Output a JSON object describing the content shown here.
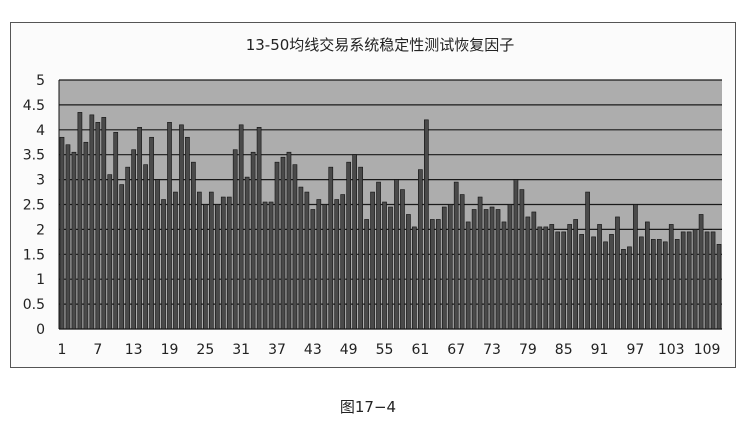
{
  "chart_data": {
    "type": "bar",
    "title": "13-50均线交易系统稳定性测试恢复因子",
    "xlabel": "",
    "ylabel": "",
    "ylim": [
      0,
      5
    ],
    "y_ticks": [
      "0",
      "0.5",
      "1",
      "1.5",
      "2",
      "2.5",
      "3",
      "3.5",
      "4",
      "4.5",
      "5"
    ],
    "x_tick_labels": [
      "1",
      "7",
      "13",
      "19",
      "25",
      "31",
      "37",
      "43",
      "49",
      "55",
      "61",
      "67",
      "73",
      "79",
      "85",
      "91",
      "97",
      "103",
      "109"
    ],
    "categories": [
      1,
      2,
      3,
      4,
      5,
      6,
      7,
      8,
      9,
      10,
      11,
      12,
      13,
      14,
      15,
      16,
      17,
      18,
      19,
      20,
      21,
      22,
      23,
      24,
      25,
      26,
      27,
      28,
      29,
      30,
      31,
      32,
      33,
      34,
      35,
      36,
      37,
      38,
      39,
      40,
      41,
      42,
      43,
      44,
      45,
      46,
      47,
      48,
      49,
      50,
      51,
      52,
      53,
      54,
      55,
      56,
      57,
      58,
      59,
      60,
      61,
      62,
      63,
      64,
      65,
      66,
      67,
      68,
      69,
      70,
      71,
      72,
      73,
      74,
      75,
      76,
      77,
      78,
      79,
      80,
      81,
      82,
      83,
      84,
      85,
      86,
      87,
      88,
      89,
      90,
      91,
      92,
      93,
      94,
      95,
      96,
      97,
      98,
      99,
      100,
      101,
      102,
      103,
      104,
      105,
      106,
      107,
      108,
      109,
      110,
      111
    ],
    "values": [
      3.85,
      3.7,
      3.55,
      4.35,
      3.75,
      4.3,
      4.15,
      4.25,
      3.1,
      3.95,
      2.9,
      3.25,
      3.6,
      4.05,
      3.3,
      3.85,
      3.0,
      2.6,
      4.15,
      2.75,
      4.1,
      3.85,
      3.35,
      2.75,
      2.5,
      2.75,
      2.5,
      2.65,
      2.65,
      3.6,
      4.1,
      3.05,
      3.55,
      4.05,
      2.55,
      2.55,
      3.35,
      3.45,
      3.55,
      3.3,
      2.85,
      2.75,
      2.4,
      2.6,
      2.5,
      3.25,
      2.6,
      2.7,
      3.35,
      3.5,
      3.25,
      2.2,
      2.75,
      2.95,
      2.55,
      2.45,
      3.0,
      2.8,
      2.3,
      2.05,
      3.2,
      4.2,
      2.2,
      2.2,
      2.45,
      2.5,
      2.95,
      2.7,
      2.15,
      2.4,
      2.65,
      2.4,
      2.45,
      2.4,
      2.15,
      2.5,
      3.0,
      2.8,
      2.25,
      2.35,
      2.05,
      2.05,
      2.1,
      1.95,
      1.95,
      2.1,
      2.2,
      1.9,
      2.75,
      1.85,
      2.1,
      1.75,
      1.9,
      2.25,
      1.6,
      1.65,
      2.5,
      1.85,
      2.15,
      1.8,
      1.8,
      1.75,
      2.1,
      1.8,
      1.95,
      1.95,
      2.0,
      2.3,
      1.95,
      1.95,
      1.7
    ],
    "colors": {
      "plot_bg": "#adadad",
      "grid": "#1a1a1a",
      "bar_fill": "#4a4a4a",
      "bar_stroke": "#111111"
    }
  },
  "caption": "图17−4"
}
